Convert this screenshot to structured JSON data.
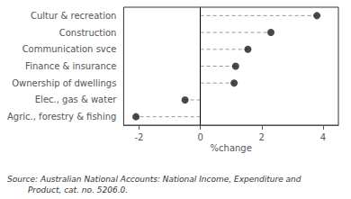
{
  "chart_data": {
    "type": "dot",
    "categories": [
      "Agric., forestry & fishing",
      "Elec., gas & water",
      "Ownership of dwellings",
      "Finance & insurance",
      "Communication svce",
      "Construction",
      "Cultur & recreation"
    ],
    "values": [
      -2.1,
      -0.5,
      1.1,
      1.15,
      1.55,
      2.3,
      3.8
    ],
    "xlabel": "%change",
    "xlim": [
      -2.5,
      4.5
    ],
    "xticks": [
      -2,
      0,
      2,
      4
    ],
    "color": "#1a1a1a",
    "marker": "circle",
    "line_style": "dashed",
    "grid": false,
    "annotations": [
      "Source: Australian National Accounts: National Income, Expenditure and",
      "        Product, cat. no. 5206.0."
    ]
  }
}
